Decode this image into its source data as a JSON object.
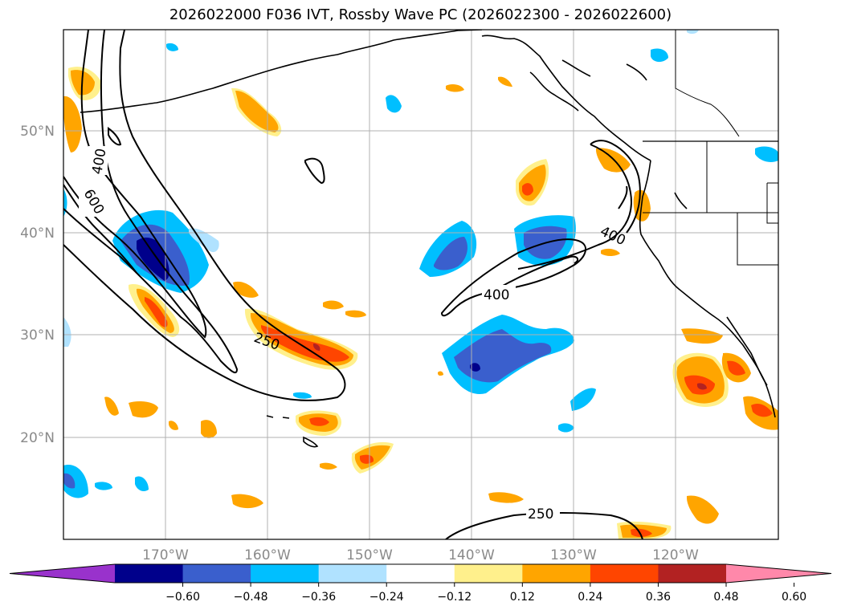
{
  "title": "2026022000 F036 IVT, Rossby Wave PC (2026022300 - 2026022600)",
  "axes": {
    "lat_labels": [
      "50°N",
      "40°N",
      "30°N",
      "20°N"
    ],
    "lon_labels": [
      "170°W",
      "160°W",
      "150°W",
      "140°W",
      "130°W",
      "120°W"
    ]
  },
  "contours": {
    "labels": [
      "400",
      "600",
      "250",
      "400",
      "400",
      "250"
    ]
  },
  "colorbar": {
    "ticks": [
      "−0.60",
      "−0.48",
      "−0.36",
      "−0.24",
      "−0.12",
      "0.12",
      "0.24",
      "0.36",
      "0.48",
      "0.60"
    ],
    "colors": [
      "#9932cc",
      "#00008b",
      "#3a5fcd",
      "#00bfff",
      "#b0e2ff",
      "#ffffff",
      "#fff08c",
      "#ffa500",
      "#ff4500",
      "#b22222",
      "#ff88aa"
    ]
  },
  "palette": {
    "grid": "#b0b0b0",
    "coast": "#000000",
    "contour": "#000000"
  }
}
